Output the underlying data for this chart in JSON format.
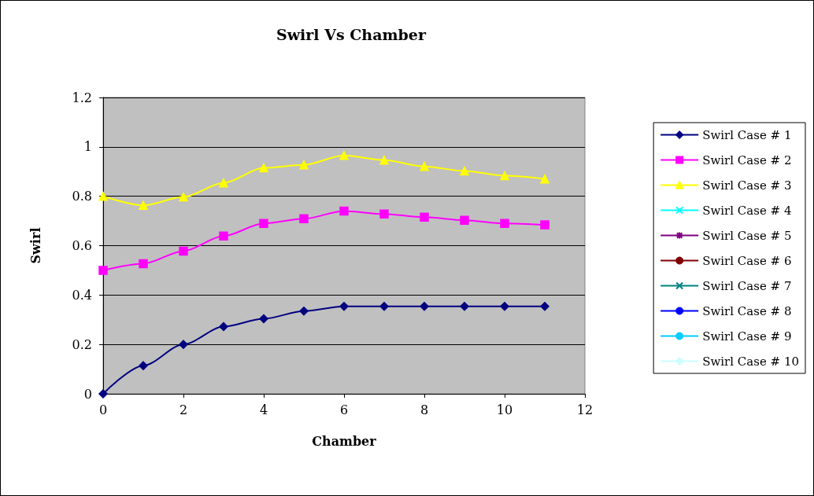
{
  "chart_data": {
    "type": "line",
    "title": "Swirl Vs Chamber",
    "xlabel": "Chamber",
    "ylabel": "Swirl",
    "x": [
      0,
      1,
      2,
      3,
      4,
      5,
      6,
      7,
      8,
      9,
      10,
      11
    ],
    "xlim": [
      0,
      12
    ],
    "xticks": [
      0,
      2,
      4,
      6,
      8,
      10,
      12
    ],
    "ylim": [
      0,
      1.2
    ],
    "yticks": [
      0,
      0.2,
      0.4,
      0.6,
      0.8,
      1,
      1.2
    ],
    "grid": "y",
    "legend": "right",
    "series": [
      {
        "name": "Swirl Case # 1",
        "color": "#000080",
        "marker": "diamond",
        "values": [
          0,
          0.114,
          0.2,
          0.272,
          0.304,
          0.335,
          0.354,
          0.354,
          0.354,
          0.354,
          0.354,
          0.354
        ]
      },
      {
        "name": "Swirl Case # 2",
        "color": "#ff00ff",
        "marker": "square",
        "values": [
          0.5,
          0.527,
          0.578,
          0.639,
          0.69,
          0.709,
          0.74,
          0.728,
          0.715,
          0.703,
          0.69,
          0.684
        ]
      },
      {
        "name": "Swirl Case # 3",
        "color": "#ffff00",
        "marker": "triangle",
        "values": [
          0.8,
          0.763,
          0.797,
          0.854,
          0.915,
          0.927,
          0.965,
          0.946,
          0.921,
          0.902,
          0.883,
          0.87
        ]
      },
      {
        "name": "Swirl Case # 4",
        "color": "#00ffff",
        "marker": "cross",
        "values": [
          null,
          null,
          null,
          null,
          null,
          null,
          null,
          null,
          null,
          null,
          null,
          null
        ]
      },
      {
        "name": "Swirl Case # 5",
        "color": "#800080",
        "marker": "star",
        "values": [
          null,
          null,
          null,
          null,
          null,
          null,
          null,
          null,
          null,
          null,
          null,
          null
        ]
      },
      {
        "name": "Swirl Case # 6",
        "color": "#800000",
        "marker": "circle",
        "values": [
          null,
          null,
          null,
          null,
          null,
          null,
          null,
          null,
          null,
          null,
          null,
          null
        ]
      },
      {
        "name": "Swirl Case # 7",
        "color": "#008080",
        "marker": "cross",
        "values": [
          null,
          null,
          null,
          null,
          null,
          null,
          null,
          null,
          null,
          null,
          null,
          null
        ]
      },
      {
        "name": "Swirl Case # 8",
        "color": "#0000ff",
        "marker": "none",
        "values": [
          null,
          null,
          null,
          null,
          null,
          null,
          null,
          null,
          null,
          null,
          null,
          null
        ]
      },
      {
        "name": "Swirl Case # 9",
        "color": "#00ccff",
        "marker": "none",
        "values": [
          null,
          null,
          null,
          null,
          null,
          null,
          null,
          null,
          null,
          null,
          null,
          null
        ]
      },
      {
        "name": "Swirl Case # 10",
        "color": "#ccffff",
        "marker": "diamond",
        "values": [
          null,
          null,
          null,
          null,
          null,
          null,
          null,
          null,
          null,
          null,
          null,
          null
        ]
      }
    ]
  }
}
